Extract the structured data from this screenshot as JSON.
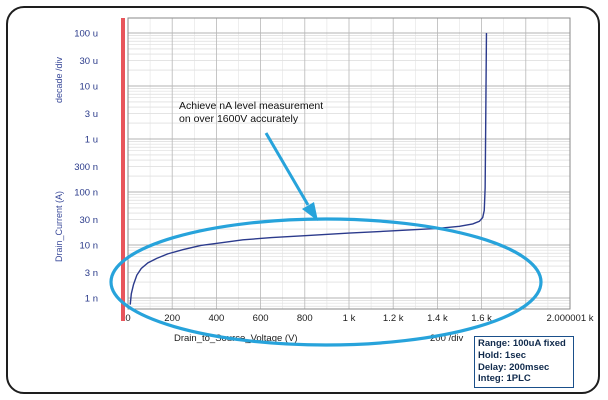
{
  "chart_data": {
    "type": "line",
    "x_axis": {
      "label": "Drain_to_Source_Voltage (V)",
      "scale_note": "200  /div",
      "ticks": [
        {
          "value": 0,
          "label": "0"
        },
        {
          "value": 200,
          "label": "200"
        },
        {
          "value": 400,
          "label": "400"
        },
        {
          "value": 600,
          "label": "600"
        },
        {
          "value": 800,
          "label": "800"
        },
        {
          "value": 1000,
          "label": "1 k"
        },
        {
          "value": 1200,
          "label": "1.2 k"
        },
        {
          "value": 1400,
          "label": "1.4 k"
        },
        {
          "value": 1600,
          "label": "1.6 k"
        },
        {
          "value": 2000,
          "label": "2.000001 k"
        }
      ],
      "range": [
        0,
        2000
      ]
    },
    "y_axis": {
      "label": "Drain_Current (A)",
      "scale_note": "decade /div",
      "scale": "log",
      "range": [
        1e-09,
        0.0001
      ],
      "ticks": [
        {
          "value": 1e-09,
          "label": "1 n"
        },
        {
          "value": 3e-09,
          "label": "3 n"
        },
        {
          "value": 1e-08,
          "label": "10 n"
        },
        {
          "value": 3e-08,
          "label": "30 n"
        },
        {
          "value": 1e-07,
          "label": "100 n"
        },
        {
          "value": 3e-07,
          "label": "300 n"
        },
        {
          "value": 1e-06,
          "label": "1 u"
        },
        {
          "value": 3e-06,
          "label": "3 u"
        },
        {
          "value": 1e-05,
          "label": "10 u"
        },
        {
          "value": 3e-05,
          "label": "30 u"
        },
        {
          "value": 0.0001,
          "label": "100 u"
        }
      ]
    },
    "grid": true,
    "series": [
      {
        "color": "#2b3a8c",
        "points": [
          [
            10,
            7.5e-10
          ],
          [
            15,
            1.2e-09
          ],
          [
            25,
            1.8e-09
          ],
          [
            40,
            2.7e-09
          ],
          [
            60,
            3.6e-09
          ],
          [
            90,
            4.6e-09
          ],
          [
            130,
            5.6e-09
          ],
          [
            180,
            6.8e-09
          ],
          [
            250,
            8.2e-09
          ],
          [
            330,
            9.8e-09
          ],
          [
            420,
            1.1e-08
          ],
          [
            520,
            1.25e-08
          ],
          [
            650,
            1.38e-08
          ],
          [
            800,
            1.5e-08
          ],
          [
            1000,
            1.68e-08
          ],
          [
            1200,
            1.85e-08
          ],
          [
            1400,
            2.05e-08
          ],
          [
            1500,
            2.25e-08
          ],
          [
            1560,
            2.5e-08
          ],
          [
            1590,
            2.8e-08
          ],
          [
            1605,
            3.3e-08
          ],
          [
            1612,
            4.5e-08
          ],
          [
            1616,
            1.2e-07
          ],
          [
            1618,
            1e-06
          ],
          [
            1620,
            1e-05
          ],
          [
            1622,
            0.0001
          ]
        ]
      }
    ],
    "annotation": {
      "line1": "Achieve nA level measurement",
      "line2": "on over 1600V accurately"
    },
    "marker_line_color": "#e8555b",
    "highlight_color": "#27a3db"
  },
  "settings_box": {
    "range": "Range: 100uA fixed",
    "hold": "Hold: 1sec",
    "delay": "Delay: 200msec",
    "integ": "Integ: 1PLC"
  }
}
